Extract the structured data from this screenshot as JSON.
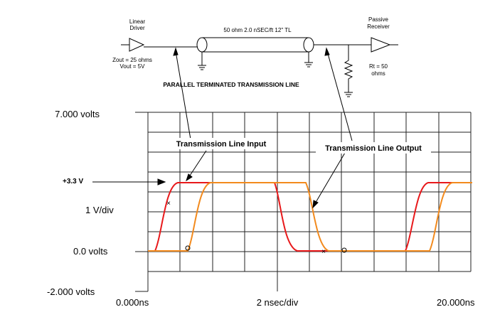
{
  "schematic": {
    "driver_label": [
      "Linear",
      "Driver"
    ],
    "receiver_label": [
      "Passive",
      "Receiver"
    ],
    "line_label": "50 ohm 2.0 nSEC/ft 12\" TL",
    "driver_specs": [
      "Zout = 25 ohms",
      "Vout = 5V"
    ],
    "termination_label": [
      "Rt = 50",
      "ohms"
    ],
    "title": "PARALLEL TERMINATED TRANSMISSION LINE"
  },
  "scope": {
    "top_label": "7.000 volts",
    "input_label": "Transmission Line Input",
    "output_label": "Transmission Line Output",
    "level_label": "+3.3 V",
    "scale_label": "1 V/div",
    "zero_label": "0.0 volts",
    "bottom_label": "-2.000 volts",
    "x_start": "0.000ns",
    "x_scale": "2 nsec/div",
    "x_end": "20.000ns"
  }
}
